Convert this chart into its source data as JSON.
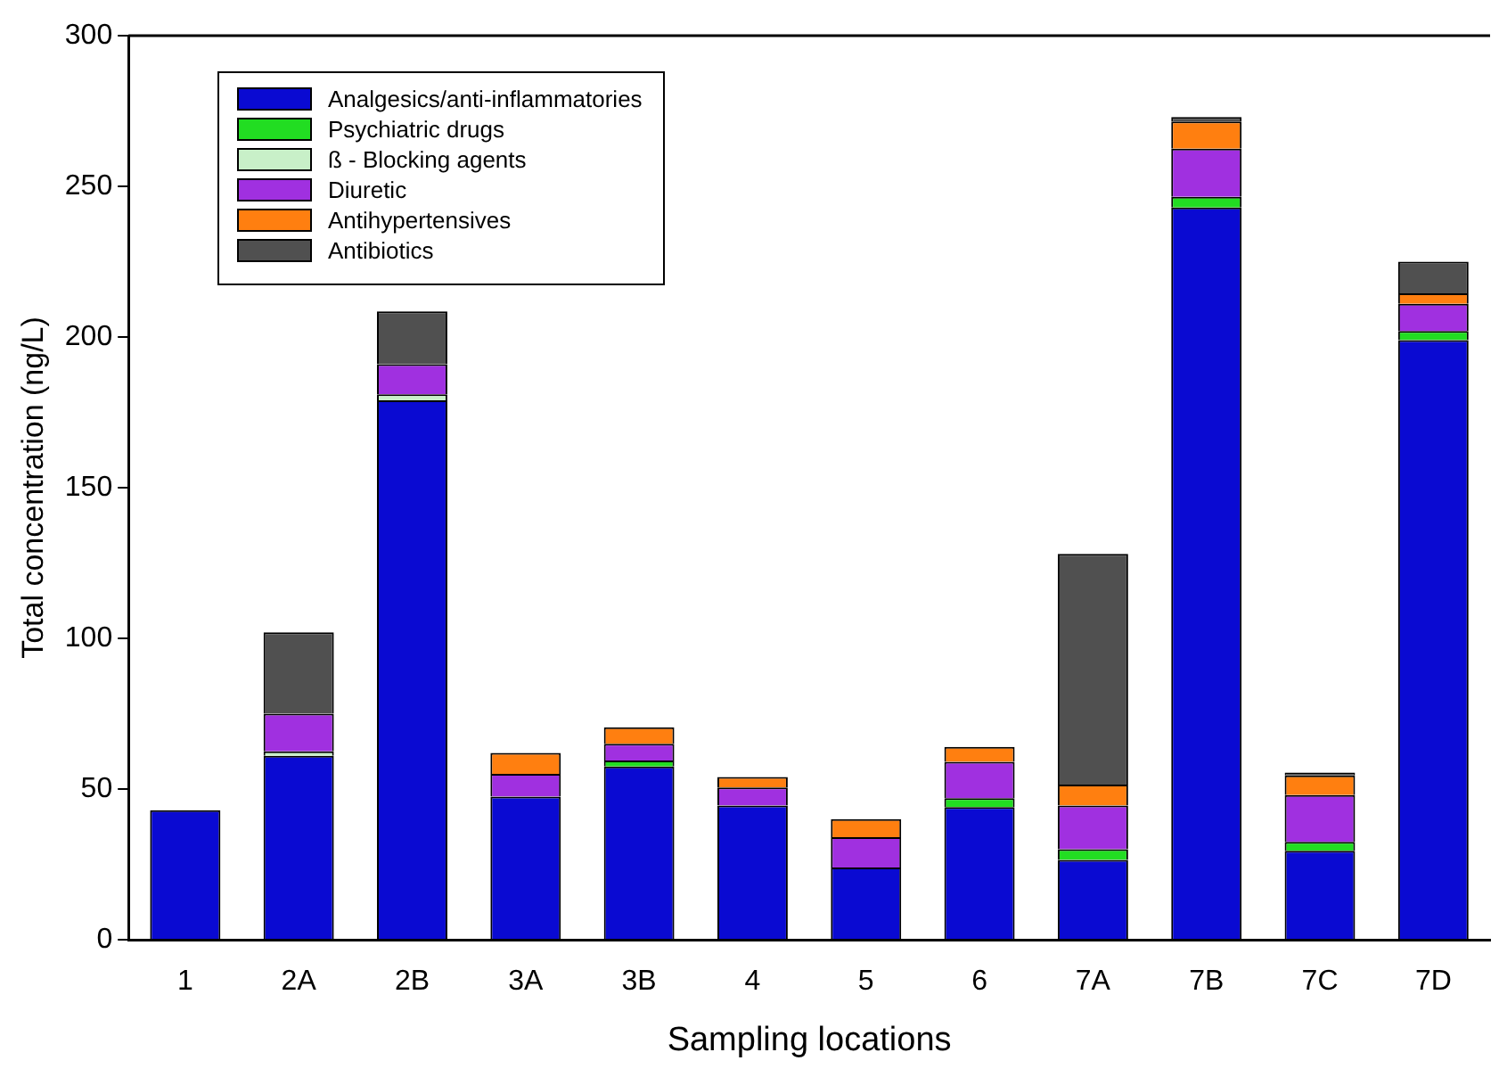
{
  "chart_data": {
    "type": "bar",
    "stacked": true,
    "xlabel": "Sampling locations",
    "ylabel": "Total concentration (ng/L)",
    "categories": [
      "1",
      "2A",
      "2B",
      "3A",
      "3B",
      "4",
      "5",
      "6",
      "7A",
      "7B",
      "7C",
      "7D"
    ],
    "series": [
      {
        "name": "Analgesics/anti-inflammatories",
        "color": "#0a0ad2",
        "values": [
          43,
          61,
          179,
          47.5,
          57.5,
          44.5,
          24,
          44,
          26.5,
          243,
          29.5,
          199
        ]
      },
      {
        "name": "Psychiatric drugs",
        "color": "#22dd22",
        "values": [
          0,
          0,
          0,
          0,
          2,
          0,
          0,
          3,
          3.5,
          3.5,
          3,
          3
        ]
      },
      {
        "name": "ß - Blocking agents",
        "color": "#c8f0c8",
        "values": [
          0,
          1.5,
          2,
          0,
          0,
          0,
          0,
          0,
          0,
          0,
          0,
          0
        ]
      },
      {
        "name": "Diuretic",
        "color": "#a030e0",
        "values": [
          0,
          12.5,
          10,
          7.5,
          5.5,
          6,
          10,
          12,
          14.5,
          16,
          15.5,
          9
        ]
      },
      {
        "name": "Antihypertensives",
        "color": "#ff7f10",
        "values": [
          0,
          0,
          0,
          7,
          5.5,
          3.5,
          6,
          5,
          7,
          9,
          6.5,
          3.5
        ]
      },
      {
        "name": "Antibiotics",
        "color": "#505050",
        "values": [
          0,
          27,
          17.5,
          0,
          0,
          0,
          0,
          0,
          76.5,
          1.5,
          1,
          10.5
        ]
      }
    ],
    "ylim": [
      0,
      300
    ],
    "yticks": [
      0,
      50,
      100,
      150,
      200,
      250,
      300
    ],
    "grid": false,
    "legend": "top left"
  }
}
